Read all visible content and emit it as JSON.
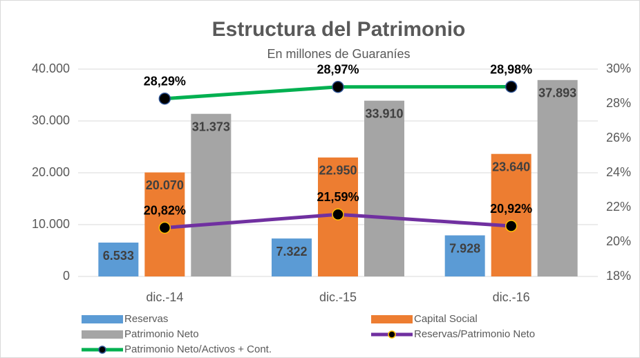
{
  "chart_data": {
    "type": "bar_line",
    "title": "Estructura del Patrimonio",
    "subtitle": "En millones de Guaraníes",
    "categories": [
      "dic.-14",
      "dic.-15",
      "dic.-16"
    ],
    "series": [
      {
        "name": "Reservas",
        "type": "bar",
        "color": "#5b9bd5",
        "values": [
          6533,
          7322,
          7928
        ],
        "value_labels": [
          "6.533",
          "7.322",
          "7.928"
        ]
      },
      {
        "name": "Capital Social",
        "type": "bar",
        "color": "#ed7d31",
        "values": [
          20070,
          22950,
          23640
        ],
        "value_labels": [
          "20.070",
          "22.950",
          "23.640"
        ]
      },
      {
        "name": "Patrimonio Neto",
        "type": "bar",
        "color": "#a5a5a5",
        "values": [
          31373,
          33910,
          37893
        ],
        "value_labels": [
          "31.373",
          "33.910",
          "37.893"
        ]
      },
      {
        "name": "Reservas/Patrimonio Neto",
        "type": "line",
        "axis": "y2",
        "color": "#7030a0",
        "marker_edge": "#ffc000",
        "values": [
          20.82,
          21.59,
          20.92
        ],
        "value_labels": [
          "20,82%",
          "21,59%",
          "20,92%"
        ]
      },
      {
        "name": "Patrimonio Neto/Activos + Cont.",
        "type": "line",
        "axis": "y2",
        "color": "#00b050",
        "marker_edge": "#2f5597",
        "values": [
          28.29,
          28.97,
          28.98
        ],
        "value_labels": [
          "28,29%",
          "28,97%",
          "28,98%"
        ]
      }
    ],
    "ylim": [
      0,
      40000
    ],
    "yticks": [
      0,
      {
        "value": 10000,
        "label": "10.000"
      },
      {
        "value": 20000,
        "label": "20.000"
      },
      {
        "value": 30000,
        "label": "30.000"
      },
      {
        "value": 40000,
        "label": "40.000"
      }
    ],
    "y2lim": [
      18,
      30
    ],
    "y2ticks": [
      {
        "value": 18,
        "label": "18%"
      },
      {
        "value": 20,
        "label": "20%"
      },
      {
        "value": 22,
        "label": "22%"
      },
      {
        "value": 24,
        "label": "24%"
      },
      {
        "value": 26,
        "label": "26%"
      },
      {
        "value": 28,
        "label": "28%"
      },
      {
        "value": 30,
        "label": "30%"
      }
    ],
    "grid": true,
    "legend": "bottom"
  }
}
